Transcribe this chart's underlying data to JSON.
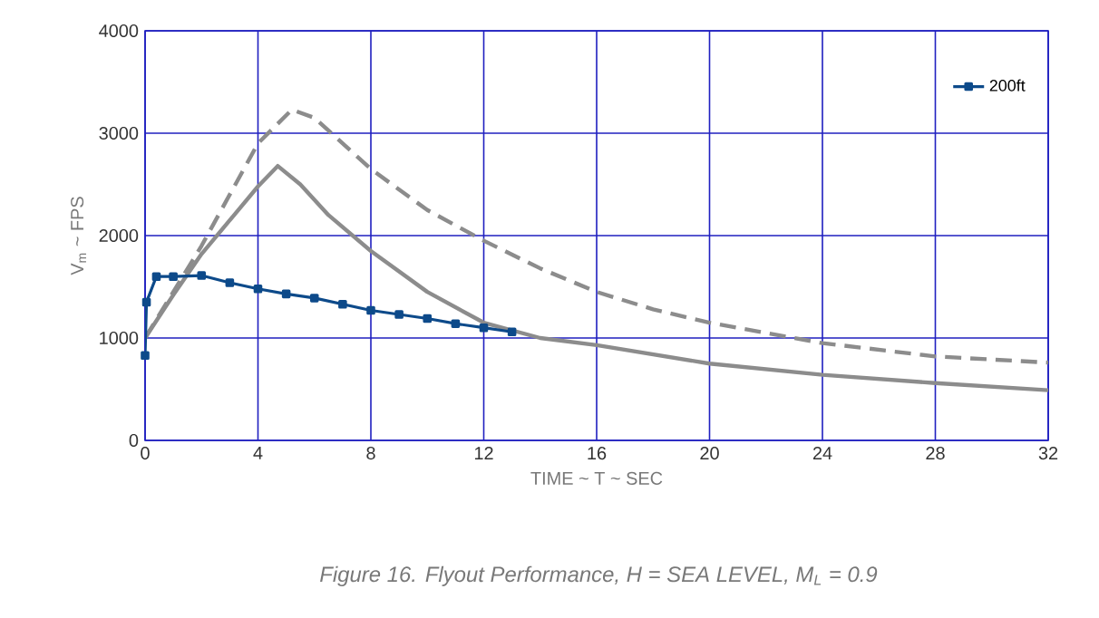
{
  "chart_data": {
    "type": "line",
    "xlabel": "TIME ~ T ~ SEC",
    "ylabel": "V$_{m}$ ~ FPS",
    "annotations": [
      "Figure 16.   Flyout Performance,  H = SEA LEVEL, M$_{L}$ = 0.9"
    ],
    "xlim": [
      0,
      32
    ],
    "ylim": [
      0,
      4000
    ],
    "xticks": [
      0,
      4,
      8,
      12,
      16,
      20,
      24,
      28,
      32
    ],
    "yticks": [
      0,
      1000,
      2000,
      3000,
      4000
    ],
    "grid": true,
    "legend": "top right",
    "series": [
      {
        "color": "#8c8c8c",
        "line_style": "solid",
        "marker": "none",
        "x": [
          0,
          1,
          2,
          3,
          4,
          4.7,
          5.5,
          6.5,
          8,
          10,
          12,
          14,
          16,
          18,
          20,
          24,
          28,
          32
        ],
        "values": [
          1000,
          1420,
          1820,
          2150,
          2480,
          2680,
          2500,
          2200,
          1850,
          1450,
          1150,
          1000,
          930,
          840,
          750,
          640,
          560,
          490
        ]
      },
      {
        "color": "#8c8c8c",
        "line_style": "dashed",
        "marker": "none",
        "x": [
          0,
          1,
          2,
          3,
          4,
          5.2,
          6,
          8,
          10,
          12,
          14,
          16,
          18,
          20,
          24,
          28,
          32
        ],
        "values": [
          1000,
          1450,
          1900,
          2400,
          2900,
          3230,
          3150,
          2650,
          2250,
          1950,
          1680,
          1450,
          1280,
          1150,
          950,
          820,
          760
        ]
      },
      {
        "name": "200ft",
        "color": "#0d4a8a",
        "line_style": "solid",
        "marker": "square",
        "x": [
          0,
          0.05,
          0.4,
          1,
          2,
          3,
          4,
          5,
          6,
          7,
          8,
          9,
          10,
          11,
          12,
          13
        ],
        "values": [
          830,
          1350,
          1600,
          1600,
          1610,
          1540,
          1480,
          1430,
          1390,
          1330,
          1270,
          1230,
          1190,
          1140,
          1100,
          1060
        ]
      }
    ]
  }
}
